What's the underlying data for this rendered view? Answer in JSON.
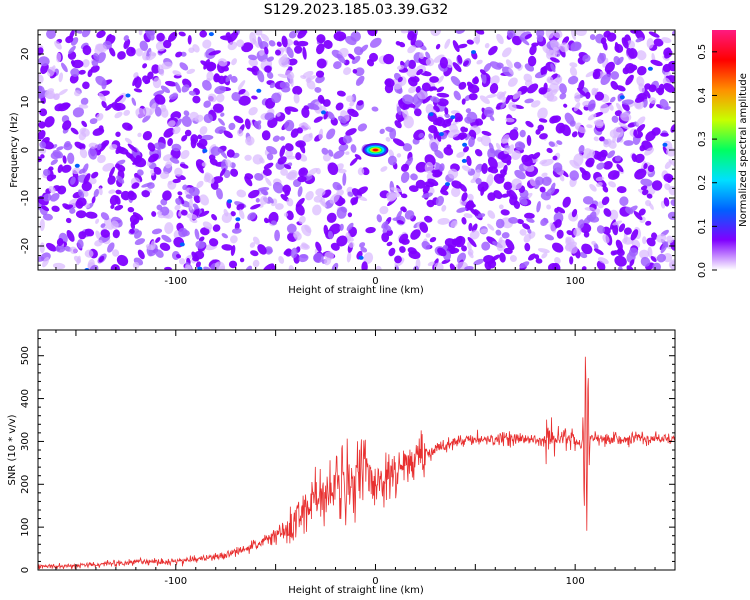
{
  "title": "S129.2023.185.03.39.G32",
  "chart_data": [
    {
      "type": "heatmap",
      "xlabel": "Height of straight line (km)",
      "ylabel": "Frequency (Hz)",
      "xlim": [
        -169,
        150
      ],
      "ylim": [
        -25,
        25
      ],
      "x_ticks": [
        -100,
        0,
        100
      ],
      "y_ticks": [
        -20,
        -10,
        0,
        10,
        20
      ],
      "colorbar": {
        "label": "Normalized spectral amplitude",
        "range": [
          0.0,
          0.55
        ],
        "ticks": [
          0.0,
          0.1,
          0.2,
          0.3,
          0.4,
          0.5
        ],
        "colors": [
          "#ffffff",
          "#8000ff",
          "#0060ff",
          "#00e0ff",
          "#00ff60",
          "#c8ff00",
          "#ff9000",
          "#ff0000",
          "#ff1a80"
        ]
      },
      "features": [
        {
          "x": 0,
          "y": 0,
          "value": 0.55
        }
      ],
      "grid": false
    },
    {
      "type": "line",
      "xlabel": "Height of straight line (km)",
      "ylabel": "SNR (10 * v/v)",
      "xlim": [
        -169,
        150
      ],
      "ylim": [
        0,
        560
      ],
      "x_ticks": [
        -100,
        0,
        100
      ],
      "y_ticks": [
        0,
        100,
        200,
        300,
        400,
        500
      ],
      "color": "#e83030",
      "series": [
        {
          "x": [
            -169,
            -150,
            -130,
            -120,
            -100,
            -80,
            -70,
            -60,
            -50,
            -40,
            -35,
            -30,
            -20,
            -10,
            -5,
            0,
            5,
            10,
            20,
            30,
            40,
            50,
            60,
            70,
            80,
            90,
            100,
            103,
            105,
            107,
            110,
            120,
            130,
            140,
            150
          ],
          "y": [
            8,
            10,
            15,
            20,
            20,
            30,
            40,
            60,
            80,
            110,
            140,
            160,
            190,
            210,
            215,
            200,
            220,
            240,
            260,
            280,
            300,
            305,
            305,
            308,
            305,
            310,
            300,
            290,
            300,
            310,
            305,
            305,
            306,
            307,
            305
          ]
        }
      ],
      "grid": false
    }
  ]
}
